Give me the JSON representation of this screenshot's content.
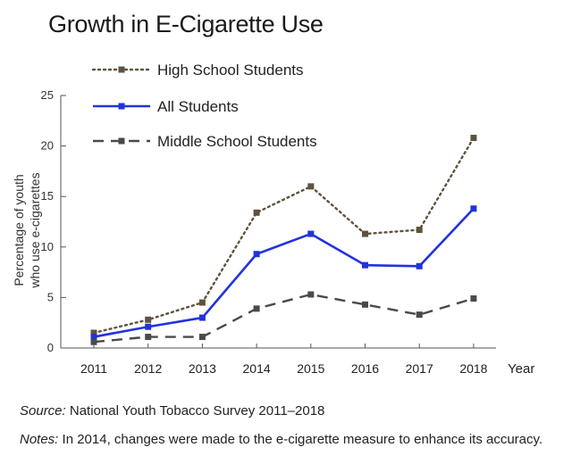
{
  "chart_data": {
    "type": "line",
    "title": "Growth in E-Cigarette Use",
    "xlabel": "Year",
    "ylabel_line1": "Percentage of youth",
    "ylabel_line2": "who use e-cigarettes",
    "categories": [
      "2011",
      "2012",
      "2013",
      "2014",
      "2015",
      "2016",
      "2017",
      "2018"
    ],
    "ylim": [
      0,
      25
    ],
    "yticks": [
      "0",
      "5",
      "10",
      "15",
      "20",
      "25"
    ],
    "legend_position": "top-left",
    "series": [
      {
        "name": "High School Students",
        "style": "dotted",
        "color": "#5e543c",
        "values": [
          1.5,
          2.8,
          4.5,
          13.4,
          16.0,
          11.3,
          11.7,
          20.8
        ]
      },
      {
        "name": "All Students",
        "style": "solid",
        "color": "#2233dd",
        "values": [
          1.1,
          2.1,
          3.0,
          9.3,
          11.3,
          8.2,
          8.1,
          13.8
        ]
      },
      {
        "name": "Middle School Students",
        "style": "dashed",
        "color": "#4a4a4a",
        "values": [
          0.6,
          1.1,
          1.1,
          3.9,
          5.3,
          4.3,
          3.3,
          4.9
        ]
      }
    ]
  },
  "footer": {
    "source_label": "Source:",
    "source_text": "National Youth Tobacco Survey 2011–2018",
    "notes_label": "Notes:",
    "notes_text": "In 2014, changes were made to the e-cigarette measure to enhance its accuracy."
  }
}
